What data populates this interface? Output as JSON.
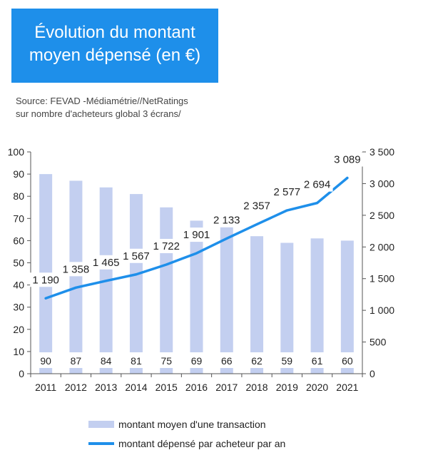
{
  "header": {
    "title_line1": "Évolution du montant",
    "title_line2": "moyen dépensé (en €)",
    "source_line1": "Source: FEVAD -Médiamétrie//NetRatings",
    "source_line2": "sur nombre d'acheteurs global 3 écrans/"
  },
  "colors": {
    "title_bg": "#1e8fea",
    "bar": "#c3cff0",
    "line": "#1e8fea",
    "text": "#222222"
  },
  "chart_data": {
    "type": "bar+line",
    "title": "Évolution du montant moyen dépensé (en €)",
    "categories": [
      "2011",
      "2012",
      "2013",
      "2014",
      "2015",
      "2016",
      "2017",
      "2018",
      "2019",
      "2020",
      "2021"
    ],
    "series": [
      {
        "name": "montant moyen d'une transaction",
        "type": "bar",
        "axis": "left",
        "values": [
          90,
          87,
          84,
          81,
          75,
          69,
          66,
          62,
          59,
          61,
          60
        ],
        "labels": [
          "90",
          "87",
          "84",
          "81",
          "75",
          "69",
          "66",
          "62",
          "59",
          "61",
          "60"
        ]
      },
      {
        "name": "montant dépensé par acheteur par an",
        "type": "line",
        "axis": "right",
        "values": [
          1190,
          1358,
          1465,
          1567,
          1722,
          1901,
          2133,
          2357,
          2577,
          2694,
          3089
        ],
        "labels": [
          "1 190",
          "1 358",
          "1 465",
          "1 567",
          "1 722",
          "1 901",
          "2 133",
          "2 357",
          "2 577",
          "2 694",
          "3 089"
        ]
      }
    ],
    "y_left": {
      "min": 0,
      "max": 100,
      "ticks": [
        "0",
        "10",
        "20",
        "30",
        "40",
        "50",
        "60",
        "70",
        "80",
        "90",
        "100"
      ]
    },
    "y_right": {
      "min": 0,
      "max": 3500,
      "ticks": [
        "0",
        "500",
        "1 000",
        "1 500",
        "2 000",
        "2 500",
        "3 000",
        "3 500"
      ]
    },
    "legend_position": "bottom",
    "grid": false
  }
}
